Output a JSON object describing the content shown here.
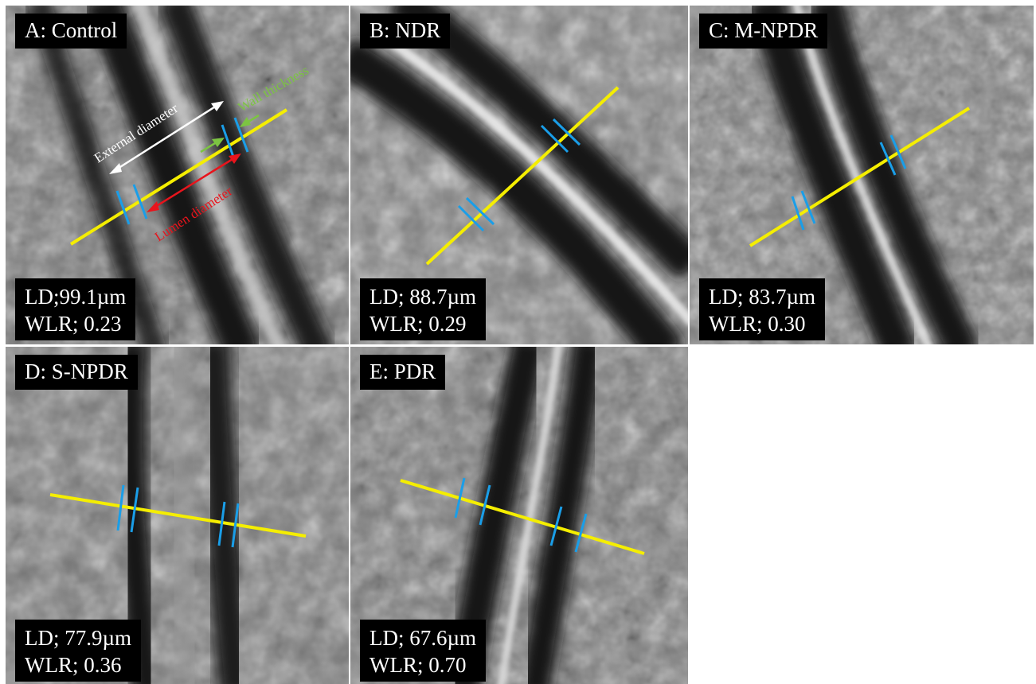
{
  "panels": [
    {
      "id": "A",
      "title": "A: Control",
      "ld_label": "LD;",
      "ld_value": "99.1µm",
      "wlr_label": "WLR;",
      "wlr_value": "0.23"
    },
    {
      "id": "B",
      "title": "B: NDR",
      "ld_label": "LD;",
      "ld_value": "88.7µm",
      "wlr_label": "WLR;",
      "wlr_value": "0.29"
    },
    {
      "id": "C",
      "title": "C: M-NPDR",
      "ld_label": "LD;",
      "ld_value": "83.7µm",
      "wlr_label": "WLR;",
      "wlr_value": "0.30"
    },
    {
      "id": "D",
      "title": "D: S-NPDR",
      "ld_label": "LD;",
      "ld_value": "77.9µm",
      "wlr_label": "WLR;",
      "wlr_value": "0.36"
    },
    {
      "id": "E",
      "title": "E: PDR",
      "ld_label": "LD;",
      "ld_value": "67.6µm",
      "wlr_label": "WLR;",
      "wlr_value": "0.70"
    }
  ],
  "annotations": {
    "external_diameter": "External diameter",
    "wall_thickness": "Wall thickness",
    "lumen_diameter": "Lumen diameter"
  },
  "colors": {
    "profile_line": "#f5ee00",
    "wall_marks": "#1a9ee8",
    "external_arrow": "#ffffff",
    "wall_arrow": "#7cc442",
    "lumen_arrow": "#e8141c"
  }
}
